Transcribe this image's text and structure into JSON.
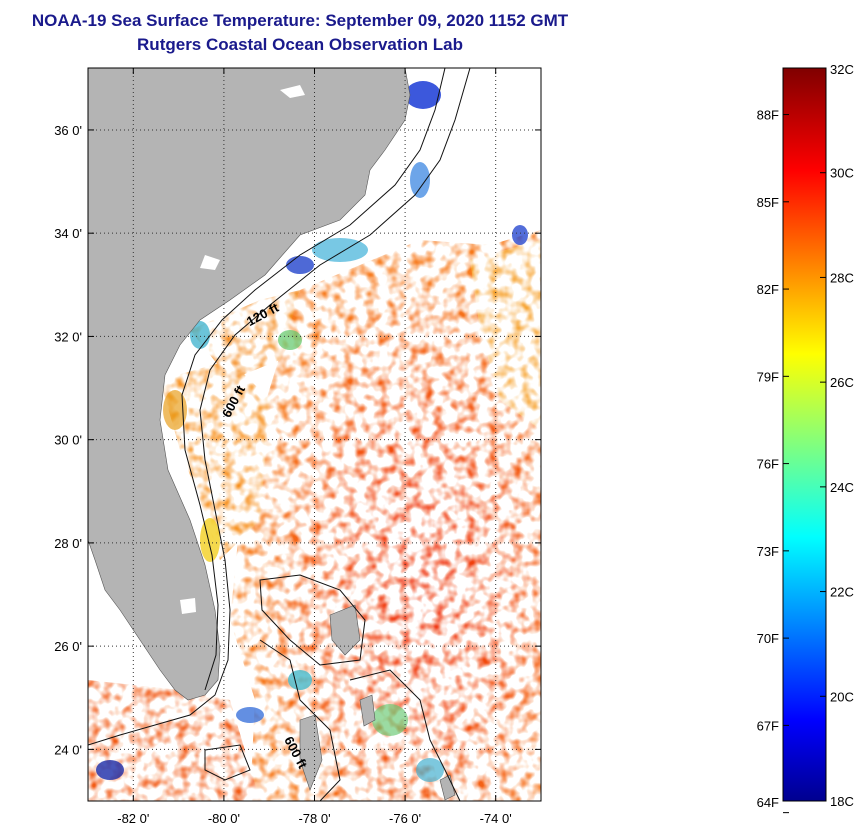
{
  "header": {
    "title_line1": "NOAA-19 Sea Surface Temperature:  September 09, 2020 1152 GMT",
    "title_line2": "Rutgers Coastal Ocean Observation Lab"
  },
  "map": {
    "lon_range": [
      -83,
      -73
    ],
    "lat_range": [
      23,
      37.2
    ],
    "lon_ticks": [
      {
        "value": -82,
        "label": "-82 0'"
      },
      {
        "value": -80,
        "label": "-80 0'"
      },
      {
        "value": -78,
        "label": "-78 0'"
      },
      {
        "value": -76,
        "label": "-76 0'"
      },
      {
        "value": -74,
        "label": "-74 0'"
      }
    ],
    "lat_ticks": [
      {
        "value": 24,
        "label": "24 0'"
      },
      {
        "value": 26,
        "label": "26 0'"
      },
      {
        "value": 28,
        "label": "28 0'"
      },
      {
        "value": 30,
        "label": "30 0'"
      },
      {
        "value": 32,
        "label": "32 0'"
      },
      {
        "value": 34,
        "label": "34 0'"
      },
      {
        "value": 36,
        "label": "36 0'"
      }
    ],
    "contour_labels": [
      {
        "text": "120 ft",
        "lon": -79.1,
        "lat": 32.35,
        "angle": -28
      },
      {
        "text": "600 ft",
        "lon": -79.7,
        "lat": 30.7,
        "angle": -62
      },
      {
        "text": "600 ft",
        "lon": -78.5,
        "lat": 23.9,
        "angle": 62
      }
    ],
    "land_color": "#b4b4b4",
    "no_data_color": "#ffffff"
  },
  "colorbar": {
    "range_c": [
      18,
      32
    ],
    "celsius_ticks": [
      {
        "value": 32,
        "label": "32C"
      },
      {
        "value": 30,
        "label": "30C"
      },
      {
        "value": 28,
        "label": "28C"
      },
      {
        "value": 26,
        "label": "26C"
      },
      {
        "value": 24,
        "label": "24C"
      },
      {
        "value": 22,
        "label": "22C"
      },
      {
        "value": 20,
        "label": "20C"
      },
      {
        "value": 18,
        "label": "18C"
      }
    ],
    "fahrenheit_ticks": [
      {
        "value": 88,
        "label": "88F"
      },
      {
        "value": 85,
        "label": "85F"
      },
      {
        "value": 82,
        "label": "82F"
      },
      {
        "value": 79,
        "label": "79F"
      },
      {
        "value": 76,
        "label": "76F"
      },
      {
        "value": 73,
        "label": "73F"
      },
      {
        "value": 70,
        "label": "70F"
      },
      {
        "value": 67,
        "label": "67F"
      },
      {
        "value": 64,
        "label": "64F"
      }
    ],
    "colormap": "jet"
  }
}
